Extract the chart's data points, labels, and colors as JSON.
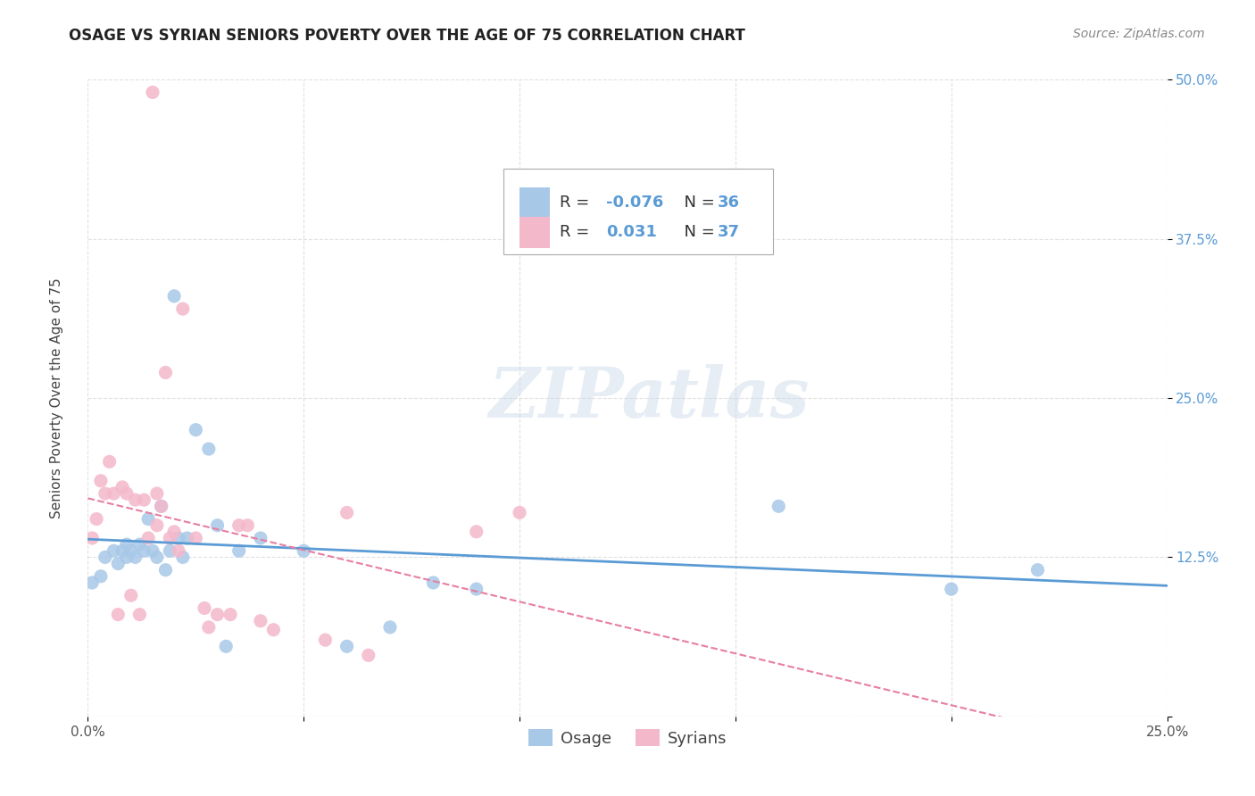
{
  "title": "OSAGE VS SYRIAN SENIORS POVERTY OVER THE AGE OF 75 CORRELATION CHART",
  "source": "Source: ZipAtlas.com",
  "ylabel": "Seniors Poverty Over the Age of 75",
  "xlim": [
    0,
    0.25
  ],
  "ylim": [
    0,
    0.5
  ],
  "xticks": [
    0.0,
    0.05,
    0.1,
    0.15,
    0.2,
    0.25
  ],
  "yticks": [
    0.0,
    0.125,
    0.25,
    0.375,
    0.5
  ],
  "xtick_labels": [
    "0.0%",
    "",
    "",
    "",
    "",
    "25.0%"
  ],
  "ytick_labels": [
    "",
    "12.5%",
    "25.0%",
    "37.5%",
    "50.0%"
  ],
  "osage_R": -0.076,
  "osage_N": 36,
  "syrian_R": 0.031,
  "syrian_N": 37,
  "osage_color": "#a8c8e8",
  "osage_line_color": "#5b9bd5",
  "syrian_color": "#f4b8cb",
  "syrian_line_color": "#e87ea0",
  "background_color": "#ffffff",
  "grid_color": "#cccccc",
  "watermark": "ZIPatlas",
  "osage_x": [
    0.001,
    0.003,
    0.004,
    0.006,
    0.007,
    0.008,
    0.009,
    0.009,
    0.01,
    0.011,
    0.012,
    0.013,
    0.014,
    0.015,
    0.016,
    0.017,
    0.018,
    0.019,
    0.02,
    0.021,
    0.022,
    0.023,
    0.025,
    0.028,
    0.03,
    0.032,
    0.035,
    0.04,
    0.05,
    0.06,
    0.07,
    0.08,
    0.09,
    0.16,
    0.2,
    0.22
  ],
  "osage_y": [
    0.105,
    0.11,
    0.125,
    0.13,
    0.12,
    0.13,
    0.125,
    0.135,
    0.13,
    0.125,
    0.135,
    0.13,
    0.155,
    0.13,
    0.125,
    0.165,
    0.115,
    0.13,
    0.33,
    0.14,
    0.125,
    0.14,
    0.225,
    0.21,
    0.15,
    0.055,
    0.13,
    0.14,
    0.13,
    0.055,
    0.07,
    0.105,
    0.1,
    0.165,
    0.1,
    0.115
  ],
  "syrian_x": [
    0.001,
    0.002,
    0.003,
    0.004,
    0.005,
    0.006,
    0.007,
    0.008,
    0.009,
    0.01,
    0.011,
    0.012,
    0.013,
    0.014,
    0.015,
    0.016,
    0.016,
    0.017,
    0.018,
    0.019,
    0.02,
    0.021,
    0.022,
    0.025,
    0.027,
    0.028,
    0.03,
    0.033,
    0.035,
    0.037,
    0.04,
    0.043,
    0.055,
    0.06,
    0.065,
    0.09,
    0.1
  ],
  "syrian_y": [
    0.14,
    0.155,
    0.185,
    0.175,
    0.2,
    0.175,
    0.08,
    0.18,
    0.175,
    0.095,
    0.17,
    0.08,
    0.17,
    0.14,
    0.49,
    0.15,
    0.175,
    0.165,
    0.27,
    0.14,
    0.145,
    0.13,
    0.32,
    0.14,
    0.085,
    0.07,
    0.08,
    0.08,
    0.15,
    0.15,
    0.075,
    0.068,
    0.06,
    0.16,
    0.048,
    0.145,
    0.16
  ],
  "title_fontsize": 12,
  "axis_fontsize": 11,
  "tick_fontsize": 11,
  "source_fontsize": 10
}
